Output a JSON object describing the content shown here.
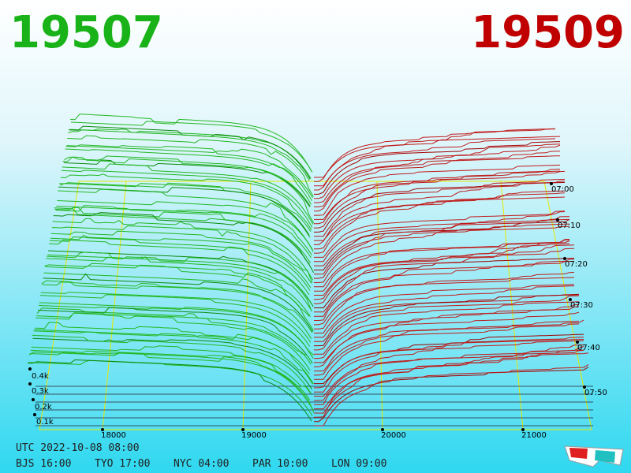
{
  "header": {
    "bid": "19507",
    "ask": "19509"
  },
  "price_axis": [
    "18000",
    "19000",
    "20000",
    "21000"
  ],
  "depth_axis": [
    "0.4k",
    "0.3k",
    "0.2k",
    "0.1k"
  ],
  "time_axis": [
    "07:00",
    "07:10",
    "07:20",
    "07:30",
    "07:40",
    "07:50"
  ],
  "footer": {
    "utc": "UTC 2022-10-08 08:00",
    "zones": [
      "BJS 16:00",
      "TYO 17:00",
      "NYC 04:00",
      "PAR 10:00",
      "LON 09:00"
    ]
  }
}
